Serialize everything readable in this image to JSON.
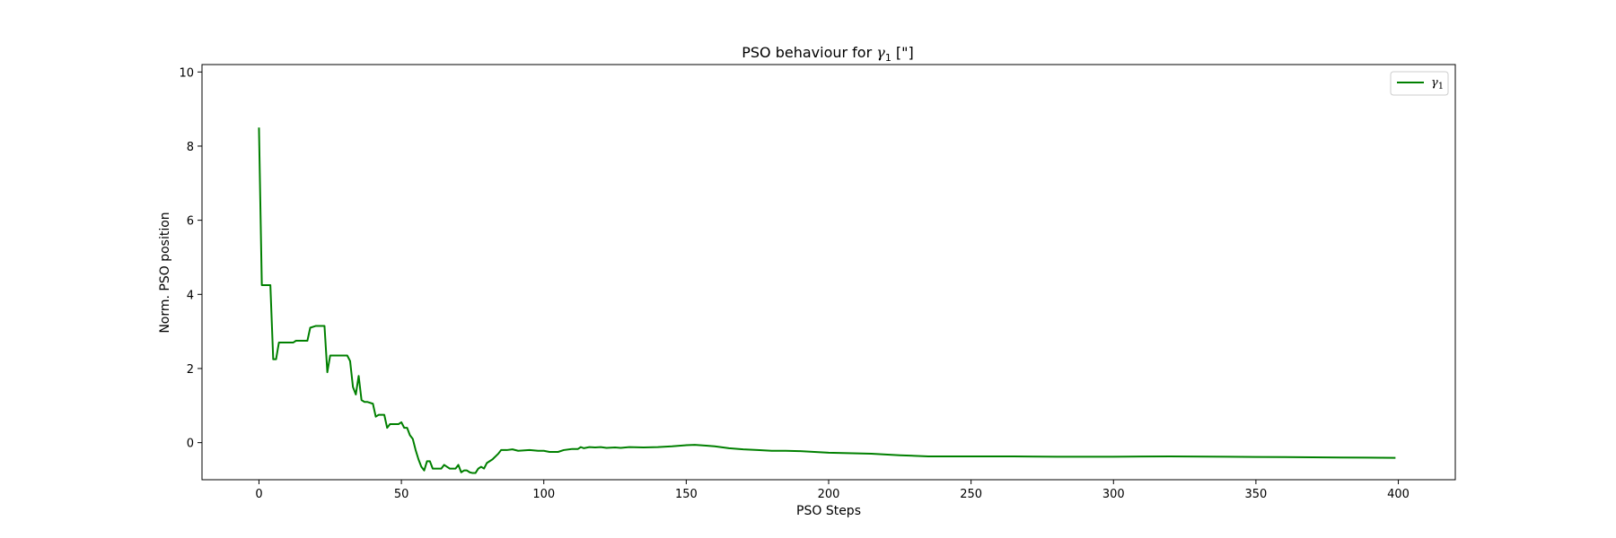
{
  "chart_data": {
    "type": "line",
    "title": "PSO behaviour for γ₁ [\"]",
    "title_main": "PSO behaviour for ",
    "title_symbol": "γ",
    "title_sub": "1",
    "title_unit": " [\"]",
    "xlabel": "PSO Steps",
    "ylabel": "Norm. PSO position",
    "xlim": [
      -20,
      420
    ],
    "ylim": [
      -1.0,
      10.2
    ],
    "xticks": [
      0,
      50,
      100,
      150,
      200,
      250,
      300,
      350,
      400
    ],
    "yticks": [
      0,
      2,
      4,
      6,
      8,
      10
    ],
    "grid": false,
    "legend_position": "top-right",
    "series": [
      {
        "name": "γ₁",
        "legend_symbol": "γ",
        "legend_sub": "1",
        "color": "#008000",
        "points": [
          [
            0,
            8.5
          ],
          [
            1,
            4.25
          ],
          [
            2,
            4.25
          ],
          [
            3,
            4.25
          ],
          [
            4,
            4.25
          ],
          [
            5,
            2.25
          ],
          [
            6,
            2.25
          ],
          [
            7,
            2.7
          ],
          [
            8,
            2.7
          ],
          [
            10,
            2.7
          ],
          [
            12,
            2.7
          ],
          [
            13,
            2.75
          ],
          [
            15,
            2.75
          ],
          [
            17,
            2.75
          ],
          [
            18,
            3.1
          ],
          [
            20,
            3.15
          ],
          [
            21,
            3.15
          ],
          [
            22,
            3.15
          ],
          [
            23,
            3.15
          ],
          [
            24,
            1.9
          ],
          [
            25,
            2.35
          ],
          [
            27,
            2.35
          ],
          [
            29,
            2.35
          ],
          [
            31,
            2.35
          ],
          [
            32,
            2.2
          ],
          [
            33,
            1.5
          ],
          [
            34,
            1.3
          ],
          [
            35,
            1.8
          ],
          [
            36,
            1.15
          ],
          [
            37,
            1.1
          ],
          [
            38,
            1.1
          ],
          [
            40,
            1.05
          ],
          [
            41,
            0.7
          ],
          [
            42,
            0.75
          ],
          [
            43,
            0.75
          ],
          [
            44,
            0.75
          ],
          [
            45,
            0.4
          ],
          [
            46,
            0.5
          ],
          [
            47,
            0.5
          ],
          [
            48,
            0.5
          ],
          [
            49,
            0.5
          ],
          [
            50,
            0.55
          ],
          [
            51,
            0.4
          ],
          [
            52,
            0.4
          ],
          [
            53,
            0.2
          ],
          [
            54,
            0.1
          ],
          [
            55,
            -0.2
          ],
          [
            56,
            -0.45
          ],
          [
            57,
            -0.65
          ],
          [
            58,
            -0.75
          ],
          [
            59,
            -0.5
          ],
          [
            60,
            -0.5
          ],
          [
            61,
            -0.7
          ],
          [
            62,
            -0.7
          ],
          [
            63,
            -0.7
          ],
          [
            64,
            -0.7
          ],
          [
            65,
            -0.6
          ],
          [
            66,
            -0.65
          ],
          [
            67,
            -0.7
          ],
          [
            68,
            -0.7
          ],
          [
            69,
            -0.7
          ],
          [
            70,
            -0.6
          ],
          [
            71,
            -0.8
          ],
          [
            72,
            -0.75
          ],
          [
            73,
            -0.75
          ],
          [
            74,
            -0.8
          ],
          [
            75,
            -0.82
          ],
          [
            76,
            -0.82
          ],
          [
            77,
            -0.7
          ],
          [
            78,
            -0.65
          ],
          [
            79,
            -0.7
          ],
          [
            80,
            -0.55
          ],
          [
            82,
            -0.45
          ],
          [
            84,
            -0.3
          ],
          [
            85,
            -0.2
          ],
          [
            87,
            -0.2
          ],
          [
            89,
            -0.18
          ],
          [
            91,
            -0.22
          ],
          [
            95,
            -0.2
          ],
          [
            98,
            -0.22
          ],
          [
            100,
            -0.22
          ],
          [
            102,
            -0.25
          ],
          [
            105,
            -0.25
          ],
          [
            107,
            -0.2
          ],
          [
            110,
            -0.17
          ],
          [
            112,
            -0.17
          ],
          [
            113,
            -0.12
          ],
          [
            114,
            -0.15
          ],
          [
            116,
            -0.12
          ],
          [
            118,
            -0.13
          ],
          [
            120,
            -0.12
          ],
          [
            122,
            -0.14
          ],
          [
            125,
            -0.13
          ],
          [
            127,
            -0.14
          ],
          [
            130,
            -0.12
          ],
          [
            135,
            -0.13
          ],
          [
            140,
            -0.12
          ],
          [
            145,
            -0.1
          ],
          [
            150,
            -0.07
          ],
          [
            153,
            -0.06
          ],
          [
            157,
            -0.08
          ],
          [
            160,
            -0.1
          ],
          [
            165,
            -0.15
          ],
          [
            170,
            -0.18
          ],
          [
            175,
            -0.2
          ],
          [
            180,
            -0.22
          ],
          [
            185,
            -0.22
          ],
          [
            190,
            -0.23
          ],
          [
            200,
            -0.27
          ],
          [
            210,
            -0.29
          ],
          [
            215,
            -0.3
          ],
          [
            225,
            -0.34
          ],
          [
            235,
            -0.37
          ],
          [
            250,
            -0.37
          ],
          [
            265,
            -0.37
          ],
          [
            280,
            -0.38
          ],
          [
            300,
            -0.38
          ],
          [
            320,
            -0.37
          ],
          [
            340,
            -0.38
          ],
          [
            360,
            -0.39
          ],
          [
            380,
            -0.4
          ],
          [
            399,
            -0.41
          ]
        ]
      }
    ]
  }
}
